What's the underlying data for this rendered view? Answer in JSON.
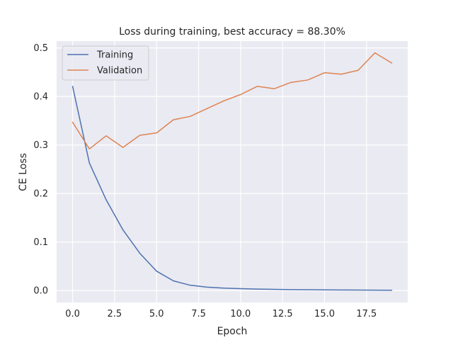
{
  "chart_data": {
    "type": "line",
    "title": "Loss during training, best accuracy = 88.30%",
    "xlabel": "Epoch",
    "ylabel": "CE Loss",
    "xlim": [
      -0.95,
      19.95
    ],
    "ylim": [
      -0.0245,
      0.5142
    ],
    "xticks": [
      0.0,
      2.5,
      5.0,
      7.5,
      10.0,
      12.5,
      15.0,
      17.5
    ],
    "xtick_labels": [
      "0.0",
      "2.5",
      "5.0",
      "7.5",
      "10.0",
      "12.5",
      "15.0",
      "17.5"
    ],
    "yticks": [
      0.0,
      0.1,
      0.2,
      0.3,
      0.4,
      0.5
    ],
    "ytick_labels": [
      "0.0",
      "0.1",
      "0.2",
      "0.3",
      "0.4",
      "0.5"
    ],
    "grid": true,
    "legend_position": "top-left",
    "x": [
      0,
      1,
      2,
      3,
      4,
      5,
      6,
      7,
      8,
      9,
      10,
      11,
      12,
      13,
      14,
      15,
      16,
      17,
      18,
      19
    ],
    "series": [
      {
        "name": "Training",
        "color": "#4c72b0",
        "values": [
          0.421,
          0.263,
          0.187,
          0.125,
          0.077,
          0.04,
          0.02,
          0.011,
          0.007,
          0.005,
          0.004,
          0.003,
          0.0025,
          0.002,
          0.0018,
          0.0015,
          0.0012,
          0.001,
          0.0008,
          0.0007
        ]
      },
      {
        "name": "Validation",
        "color": "#dd8452",
        "values": [
          0.347,
          0.292,
          0.319,
          0.295,
          0.32,
          0.325,
          0.352,
          0.359,
          0.375,
          0.391,
          0.404,
          0.421,
          0.416,
          0.429,
          0.434,
          0.449,
          0.446,
          0.454,
          0.49,
          0.469
        ]
      }
    ]
  }
}
